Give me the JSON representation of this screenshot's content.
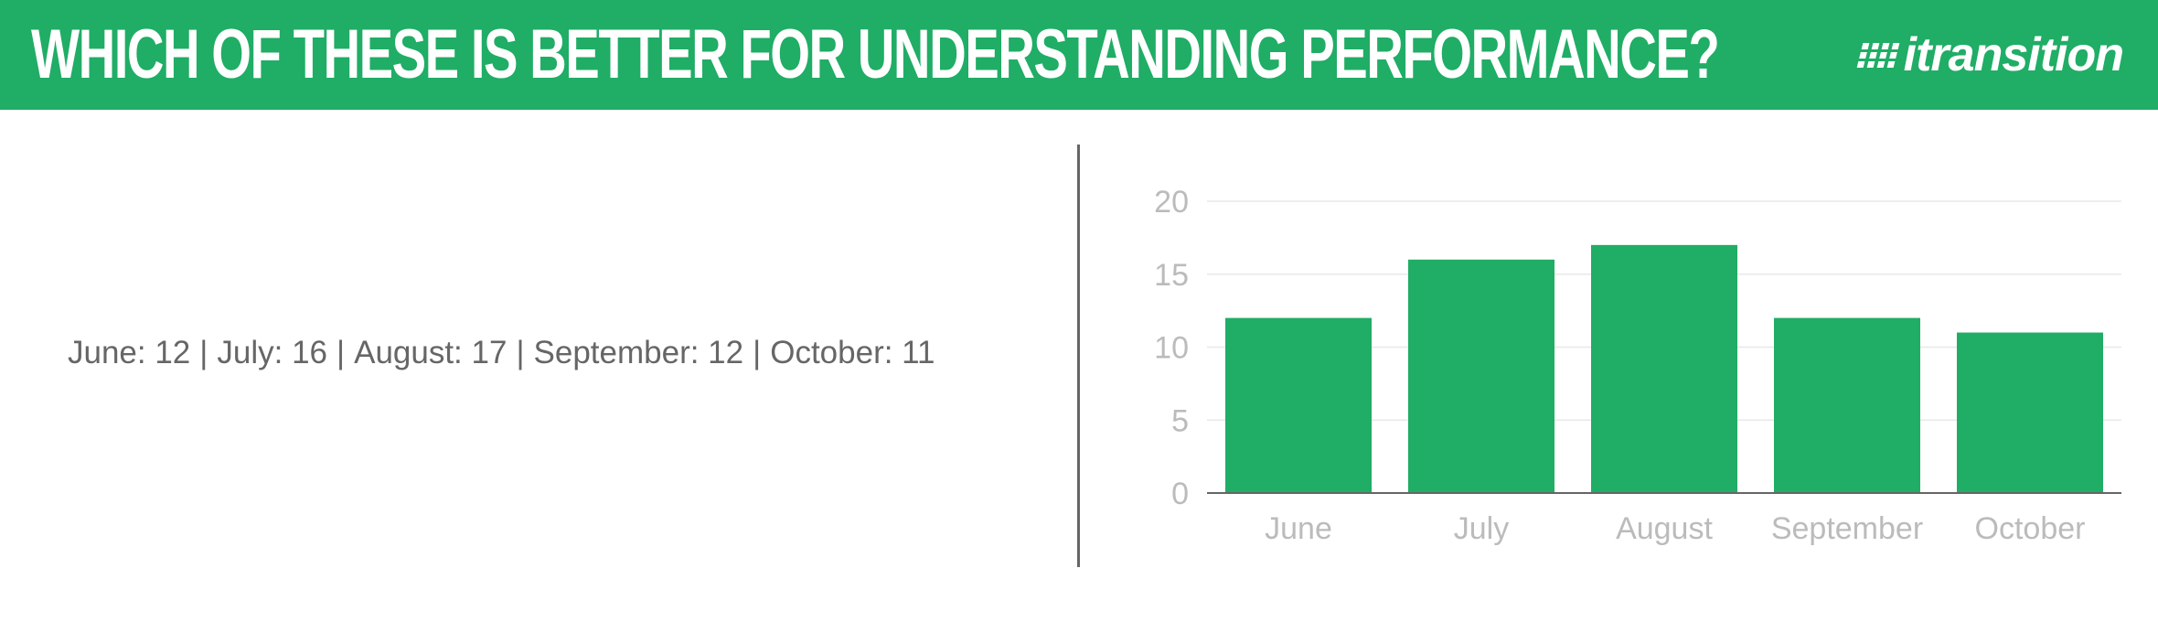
{
  "header": {
    "title": "WHICH OF THESE IS BETTER FOR UNDERSTANDING PERFORMANCE?",
    "brand": "itransition",
    "background_color": "#20ad66"
  },
  "summary": {
    "items": [
      {
        "label": "June: 12"
      },
      {
        "label": "July: 16"
      },
      {
        "label": "August: 17"
      },
      {
        "label": "September: 12"
      },
      {
        "label": "October: 11"
      }
    ],
    "separator": "|"
  },
  "chart_data": {
    "type": "bar",
    "categories": [
      "June",
      "July",
      "August",
      "September",
      "October"
    ],
    "values": [
      12,
      16,
      17,
      12,
      11
    ],
    "title": "",
    "xlabel": "",
    "ylabel": "",
    "ylim": [
      0,
      20
    ],
    "yticks": [
      0,
      5,
      10,
      15,
      20
    ],
    "grid": true,
    "legend": "none",
    "bar_color": "#20ad66",
    "tick_label_color": "#bbbbbb",
    "grid_color": "#e8e8e8",
    "axis_color": "#666666"
  }
}
